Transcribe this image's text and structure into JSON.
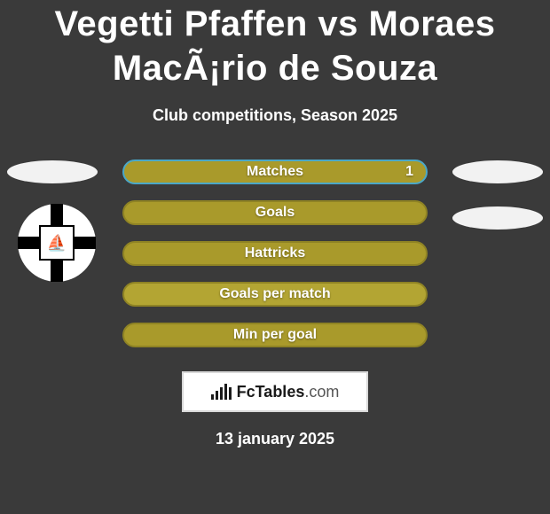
{
  "title": "Vegetti Pfaffen vs Moraes MacÃ¡rio de Souza",
  "subtitle": "Club competitions, Season 2025",
  "date": "13 january 2025",
  "branding": "FcTables",
  "branding_suffix": ".com",
  "colors": {
    "background": "#3a3a3a",
    "text": "#ffffff",
    "oval_white": "#f2f2f2",
    "bar_fill": "#a99a2b",
    "bar_fill_light": "#b3a533",
    "bar_border_matches": "#4aa8c8",
    "bar_border_default": "#8f8324",
    "branding_bg": "#ffffff",
    "branding_border": "#d9d9d9"
  },
  "stats": [
    {
      "label": "Matches",
      "value_right": "1",
      "show_left_oval": true,
      "show_right_oval": true,
      "bar_fill": "#a99a2b",
      "border": "#4aa8c8",
      "oval_color": "#f2f2f2"
    },
    {
      "label": "Goals",
      "value_right": null,
      "show_left_oval": false,
      "show_right_oval": true,
      "bar_fill": "#a99a2b",
      "border": "#8f8324",
      "oval_color": "#f2f2f2"
    },
    {
      "label": "Hattricks",
      "value_right": null,
      "show_left_oval": false,
      "show_right_oval": false,
      "bar_fill": "#a99a2b",
      "border": "#8f8324",
      "oval_color": "#f2f2f2"
    },
    {
      "label": "Goals per match",
      "value_right": null,
      "show_left_oval": false,
      "show_right_oval": false,
      "bar_fill": "#b3a533",
      "border": "#8f8324",
      "oval_color": "#f2f2f2"
    },
    {
      "label": "Min per goal",
      "value_right": null,
      "show_left_oval": false,
      "show_right_oval": false,
      "bar_fill": "#a99a2b",
      "border": "#8f8324",
      "oval_color": "#f2f2f2"
    }
  ],
  "badge": {
    "bg": "#ffffff",
    "cross": "#000000",
    "emoji": "⛵"
  },
  "brand_bars": [
    6,
    10,
    14,
    18,
    14
  ]
}
